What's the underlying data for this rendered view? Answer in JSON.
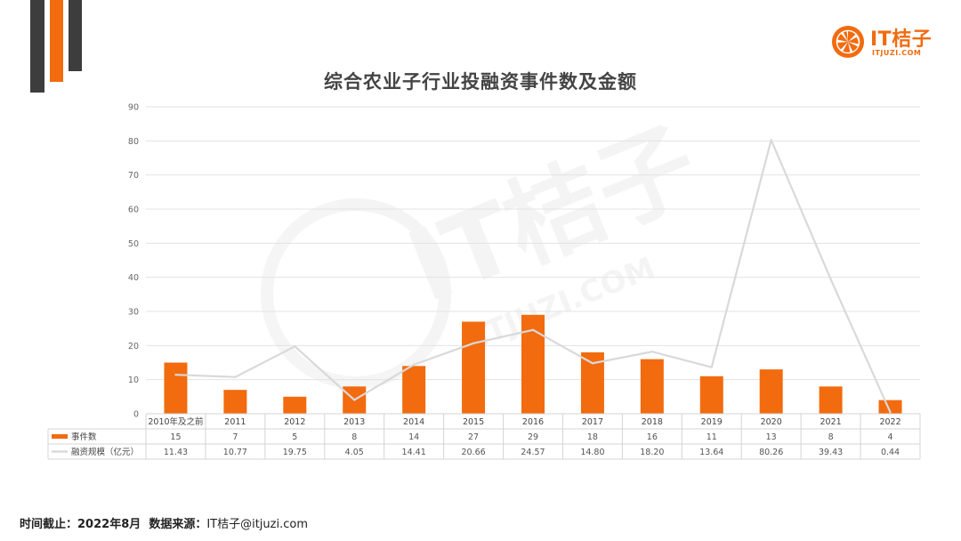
{
  "brand": {
    "name": "IT桔子",
    "url": "ITJUZI.COM",
    "color": "#f26b0f"
  },
  "watermark": {
    "name": "IT桔子",
    "url": "ITJUZI.COM"
  },
  "footer": {
    "date_label": "时间截止：",
    "date_value": "2022年8月",
    "source_label": "数据来源：",
    "source_value": "IT桔子@itjuzi.com"
  },
  "chart_data": {
    "type": "bar",
    "title": "综合农业子行业投融资事件数及金额",
    "categories": [
      "2010年及之前",
      "2011",
      "2012",
      "2013",
      "2014",
      "2015",
      "2016",
      "2017",
      "2018",
      "2019",
      "2020",
      "2021",
      "2022"
    ],
    "series": [
      {
        "name": "事件数",
        "type": "bar",
        "color": "#f26b0f",
        "values": [
          15,
          7,
          5,
          8,
          14,
          27,
          29,
          18,
          16,
          11,
          13,
          8,
          4
        ],
        "labels": [
          "15",
          "7",
          "5",
          "8",
          "14",
          "27",
          "29",
          "18",
          "16",
          "11",
          "13",
          "8",
          "4"
        ]
      },
      {
        "name": "融资规模（亿元）",
        "type": "line",
        "color": "#d9d9d9",
        "values": [
          11.43,
          10.77,
          19.75,
          4.05,
          14.41,
          20.66,
          24.57,
          14.8,
          18.2,
          13.64,
          80.26,
          39.43,
          0.44
        ],
        "labels": [
          "11.43",
          "10.77",
          "19.75",
          "4.05",
          "14.41",
          "20.66",
          "24.57",
          "14.80",
          "18.20",
          "13.64",
          "80.26",
          "39.43",
          "0.44"
        ]
      }
    ],
    "yticks": [
      "0",
      "10",
      "20",
      "30",
      "40",
      "50",
      "60",
      "70",
      "80",
      "90"
    ],
    "ylim": [
      0,
      90
    ],
    "grid": true,
    "legend": "data-table-bottom"
  }
}
